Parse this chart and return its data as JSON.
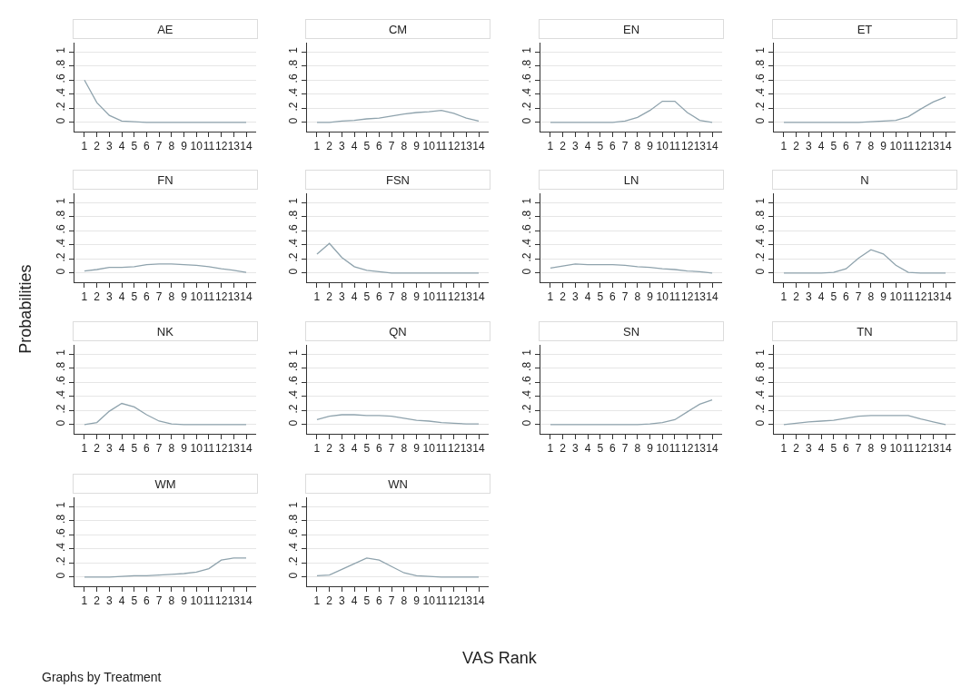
{
  "chart_data": [
    {
      "type": "other",
      "xlabel": "VAS Rank",
      "ylabel": "Probabilities",
      "annotations": [
        "Graphs by Treatment"
      ]
    },
    {
      "type": "line",
      "title": "AE",
      "x": [
        1,
        2,
        3,
        4,
        5,
        6,
        7,
        8,
        9,
        10,
        11,
        12,
        13,
        14
      ],
      "values": [
        0.6,
        0.28,
        0.1,
        0.02,
        0.01,
        0,
        0,
        0,
        0,
        0,
        0,
        0,
        0,
        0
      ],
      "color": "#8fa3ad",
      "xlim": [
        0.2,
        14.8
      ],
      "ylim": [
        -0.13,
        1.13
      ],
      "xticks": [
        1,
        2,
        3,
        4,
        5,
        6,
        7,
        8,
        9,
        10,
        11,
        12,
        13,
        14
      ],
      "yticks": [
        0,
        {
          "value": 0.2,
          "label": ".2"
        },
        {
          "value": 0.4,
          "label": ".4"
        },
        {
          "value": 0.6,
          "label": ".6"
        },
        {
          "value": 0.8,
          "label": ".8"
        },
        1
      ],
      "grid": "y"
    },
    {
      "type": "line",
      "title": "CM",
      "x": [
        1,
        2,
        3,
        4,
        5,
        6,
        7,
        8,
        9,
        10,
        11,
        12,
        13,
        14
      ],
      "values": [
        0,
        0,
        0.02,
        0.03,
        0.05,
        0.06,
        0.09,
        0.12,
        0.14,
        0.15,
        0.17,
        0.13,
        0.06,
        0.02
      ],
      "color": "#8fa3ad",
      "xlim": [
        0.2,
        14.8
      ],
      "ylim": [
        -0.13,
        1.13
      ],
      "xticks": [
        1,
        2,
        3,
        4,
        5,
        6,
        7,
        8,
        9,
        10,
        11,
        12,
        13,
        14
      ],
      "yticks": [
        0,
        {
          "value": 0.2,
          "label": ".2"
        },
        {
          "value": 0.4,
          "label": ".4"
        },
        {
          "value": 0.6,
          "label": ".6"
        },
        {
          "value": 0.8,
          "label": ".8"
        },
        1
      ],
      "grid": "y"
    },
    {
      "type": "line",
      "title": "EN",
      "x": [
        1,
        2,
        3,
        4,
        5,
        6,
        7,
        8,
        9,
        10,
        11,
        12,
        13,
        14
      ],
      "values": [
        0,
        0,
        0,
        0,
        0,
        0,
        0.02,
        0.07,
        0.17,
        0.3,
        0.3,
        0.14,
        0.03,
        0
      ],
      "color": "#8fa3ad",
      "xlim": [
        0.2,
        14.8
      ],
      "ylim": [
        -0.13,
        1.13
      ],
      "xticks": [
        1,
        2,
        3,
        4,
        5,
        6,
        7,
        8,
        9,
        10,
        11,
        12,
        13,
        14
      ],
      "yticks": [
        0,
        {
          "value": 0.2,
          "label": ".2"
        },
        {
          "value": 0.4,
          "label": ".4"
        },
        {
          "value": 0.6,
          "label": ".6"
        },
        {
          "value": 0.8,
          "label": ".8"
        },
        1
      ],
      "grid": "y"
    },
    {
      "type": "line",
      "title": "ET",
      "x": [
        1,
        2,
        3,
        4,
        5,
        6,
        7,
        8,
        9,
        10,
        11,
        12,
        13,
        14
      ],
      "values": [
        0,
        0,
        0,
        0,
        0,
        0,
        0,
        0.01,
        0.02,
        0.03,
        0.08,
        0.19,
        0.29,
        0.36
      ],
      "color": "#8fa3ad",
      "xlim": [
        0.2,
        14.8
      ],
      "ylim": [
        -0.13,
        1.13
      ],
      "xticks": [
        1,
        2,
        3,
        4,
        5,
        6,
        7,
        8,
        9,
        10,
        11,
        12,
        13,
        14
      ],
      "yticks": [
        0,
        {
          "value": 0.2,
          "label": ".2"
        },
        {
          "value": 0.4,
          "label": ".4"
        },
        {
          "value": 0.6,
          "label": ".6"
        },
        {
          "value": 0.8,
          "label": ".8"
        },
        1
      ],
      "grid": "y"
    },
    {
      "type": "line",
      "title": "FN",
      "x": [
        1,
        2,
        3,
        4,
        5,
        6,
        7,
        8,
        9,
        10,
        11,
        12,
        13,
        14
      ],
      "values": [
        0.03,
        0.05,
        0.08,
        0.08,
        0.09,
        0.12,
        0.13,
        0.13,
        0.12,
        0.11,
        0.09,
        0.06,
        0.04,
        0.01
      ],
      "color": "#8fa3ad",
      "xlim": [
        0.2,
        14.8
      ],
      "ylim": [
        -0.13,
        1.13
      ],
      "xticks": [
        1,
        2,
        3,
        4,
        5,
        6,
        7,
        8,
        9,
        10,
        11,
        12,
        13,
        14
      ],
      "yticks": [
        0,
        {
          "value": 0.2,
          "label": ".2"
        },
        {
          "value": 0.4,
          "label": ".4"
        },
        {
          "value": 0.6,
          "label": ".6"
        },
        {
          "value": 0.8,
          "label": ".8"
        },
        1
      ],
      "grid": "y"
    },
    {
      "type": "line",
      "title": "FSN",
      "x": [
        1,
        2,
        3,
        4,
        5,
        6,
        7,
        8,
        9,
        10,
        11,
        12,
        13,
        14
      ],
      "values": [
        0.27,
        0.42,
        0.22,
        0.09,
        0.04,
        0.02,
        0,
        0,
        0,
        0,
        0,
        0,
        0,
        0
      ],
      "color": "#8fa3ad",
      "xlim": [
        0.2,
        14.8
      ],
      "ylim": [
        -0.13,
        1.13
      ],
      "xticks": [
        1,
        2,
        3,
        4,
        5,
        6,
        7,
        8,
        9,
        10,
        11,
        12,
        13,
        14
      ],
      "yticks": [
        0,
        {
          "value": 0.2,
          "label": ".2"
        },
        {
          "value": 0.4,
          "label": ".4"
        },
        {
          "value": 0.6,
          "label": ".6"
        },
        {
          "value": 0.8,
          "label": ".8"
        },
        1
      ],
      "grid": "y"
    },
    {
      "type": "line",
      "title": "LN",
      "x": [
        1,
        2,
        3,
        4,
        5,
        6,
        7,
        8,
        9,
        10,
        11,
        12,
        13,
        14
      ],
      "values": [
        0.07,
        0.1,
        0.13,
        0.12,
        0.12,
        0.12,
        0.11,
        0.09,
        0.08,
        0.06,
        0.05,
        0.03,
        0.02,
        0
      ],
      "color": "#8fa3ad",
      "xlim": [
        0.2,
        14.8
      ],
      "ylim": [
        -0.13,
        1.13
      ],
      "xticks": [
        1,
        2,
        3,
        4,
        5,
        6,
        7,
        8,
        9,
        10,
        11,
        12,
        13,
        14
      ],
      "yticks": [
        0,
        {
          "value": 0.2,
          "label": ".2"
        },
        {
          "value": 0.4,
          "label": ".4"
        },
        {
          "value": 0.6,
          "label": ".6"
        },
        {
          "value": 0.8,
          "label": ".8"
        },
        1
      ],
      "grid": "y"
    },
    {
      "type": "line",
      "title": "N",
      "x": [
        1,
        2,
        3,
        4,
        5,
        6,
        7,
        8,
        9,
        10,
        11,
        12,
        13,
        14
      ],
      "values": [
        0,
        0,
        0,
        0,
        0.01,
        0.06,
        0.21,
        0.33,
        0.27,
        0.11,
        0.01,
        0,
        0,
        0
      ],
      "color": "#8fa3ad",
      "xlim": [
        0.2,
        14.8
      ],
      "ylim": [
        -0.13,
        1.13
      ],
      "xticks": [
        1,
        2,
        3,
        4,
        5,
        6,
        7,
        8,
        9,
        10,
        11,
        12,
        13,
        14
      ],
      "yticks": [
        0,
        {
          "value": 0.2,
          "label": ".2"
        },
        {
          "value": 0.4,
          "label": ".4"
        },
        {
          "value": 0.6,
          "label": ".6"
        },
        {
          "value": 0.8,
          "label": ".8"
        },
        1
      ],
      "grid": "y"
    },
    {
      "type": "line",
      "title": "NK",
      "x": [
        1,
        2,
        3,
        4,
        5,
        6,
        7,
        8,
        9,
        10,
        11,
        12,
        13,
        14
      ],
      "values": [
        0,
        0.03,
        0.19,
        0.3,
        0.25,
        0.14,
        0.05,
        0.01,
        0,
        0,
        0,
        0,
        0,
        0
      ],
      "color": "#8fa3ad",
      "xlim": [
        0.2,
        14.8
      ],
      "ylim": [
        -0.13,
        1.13
      ],
      "xticks": [
        1,
        2,
        3,
        4,
        5,
        6,
        7,
        8,
        9,
        10,
        11,
        12,
        13,
        14
      ],
      "yticks": [
        0,
        {
          "value": 0.2,
          "label": ".2"
        },
        {
          "value": 0.4,
          "label": ".4"
        },
        {
          "value": 0.6,
          "label": ".6"
        },
        {
          "value": 0.8,
          "label": ".8"
        },
        1
      ],
      "grid": "y"
    },
    {
      "type": "line",
      "title": "QN",
      "x": [
        1,
        2,
        3,
        4,
        5,
        6,
        7,
        8,
        9,
        10,
        11,
        12,
        13,
        14
      ],
      "values": [
        0.07,
        0.12,
        0.14,
        0.14,
        0.13,
        0.13,
        0.12,
        0.09,
        0.06,
        0.05,
        0.03,
        0.02,
        0.01,
        0.01
      ],
      "color": "#8fa3ad",
      "xlim": [
        0.2,
        14.8
      ],
      "ylim": [
        -0.13,
        1.13
      ],
      "xticks": [
        1,
        2,
        3,
        4,
        5,
        6,
        7,
        8,
        9,
        10,
        11,
        12,
        13,
        14
      ],
      "yticks": [
        0,
        {
          "value": 0.2,
          "label": ".2"
        },
        {
          "value": 0.4,
          "label": ".4"
        },
        {
          "value": 0.6,
          "label": ".6"
        },
        {
          "value": 0.8,
          "label": ".8"
        },
        1
      ],
      "grid": "y"
    },
    {
      "type": "line",
      "title": "SN",
      "x": [
        1,
        2,
        3,
        4,
        5,
        6,
        7,
        8,
        9,
        10,
        11,
        12,
        13,
        14
      ],
      "values": [
        0,
        0,
        0,
        0,
        0,
        0,
        0,
        0,
        0.01,
        0.03,
        0.07,
        0.18,
        0.29,
        0.35
      ],
      "color": "#8fa3ad",
      "xlim": [
        0.2,
        14.8
      ],
      "ylim": [
        -0.13,
        1.13
      ],
      "xticks": [
        1,
        2,
        3,
        4,
        5,
        6,
        7,
        8,
        9,
        10,
        11,
        12,
        13,
        14
      ],
      "yticks": [
        0,
        {
          "value": 0.2,
          "label": ".2"
        },
        {
          "value": 0.4,
          "label": ".4"
        },
        {
          "value": 0.6,
          "label": ".6"
        },
        {
          "value": 0.8,
          "label": ".8"
        },
        1
      ],
      "grid": "y"
    },
    {
      "type": "line",
      "title": "TN",
      "x": [
        1,
        2,
        3,
        4,
        5,
        6,
        7,
        8,
        9,
        10,
        11,
        12,
        13,
        14
      ],
      "values": [
        0,
        0.02,
        0.04,
        0.05,
        0.06,
        0.09,
        0.12,
        0.13,
        0.13,
        0.13,
        0.13,
        0.08,
        0.04,
        0
      ],
      "color": "#8fa3ad",
      "xlim": [
        0.2,
        14.8
      ],
      "ylim": [
        -0.13,
        1.13
      ],
      "xticks": [
        1,
        2,
        3,
        4,
        5,
        6,
        7,
        8,
        9,
        10,
        11,
        12,
        13,
        14
      ],
      "yticks": [
        0,
        {
          "value": 0.2,
          "label": ".2"
        },
        {
          "value": 0.4,
          "label": ".4"
        },
        {
          "value": 0.6,
          "label": ".6"
        },
        {
          "value": 0.8,
          "label": ".8"
        },
        1
      ],
      "grid": "y"
    },
    {
      "type": "line",
      "title": "WM",
      "x": [
        1,
        2,
        3,
        4,
        5,
        6,
        7,
        8,
        9,
        10,
        11,
        12,
        13,
        14
      ],
      "values": [
        0,
        0,
        0,
        0.01,
        0.02,
        0.02,
        0.03,
        0.04,
        0.05,
        0.07,
        0.12,
        0.24,
        0.27,
        0.27
      ],
      "color": "#8fa3ad",
      "xlim": [
        0.2,
        14.8
      ],
      "ylim": [
        -0.13,
        1.13
      ],
      "xticks": [
        1,
        2,
        3,
        4,
        5,
        6,
        7,
        8,
        9,
        10,
        11,
        12,
        13,
        14
      ],
      "yticks": [
        0,
        {
          "value": 0.2,
          "label": ".2"
        },
        {
          "value": 0.4,
          "label": ".4"
        },
        {
          "value": 0.6,
          "label": ".6"
        },
        {
          "value": 0.8,
          "label": ".8"
        },
        1
      ],
      "grid": "y"
    },
    {
      "type": "line",
      "title": "WN",
      "x": [
        1,
        2,
        3,
        4,
        5,
        6,
        7,
        8,
        9,
        10,
        11,
        12,
        13,
        14
      ],
      "values": [
        0.02,
        0.03,
        0.11,
        0.19,
        0.27,
        0.24,
        0.15,
        0.06,
        0.02,
        0.01,
        0,
        0,
        0,
        0
      ],
      "color": "#8fa3ad",
      "xlim": [
        0.2,
        14.8
      ],
      "ylim": [
        -0.13,
        1.13
      ],
      "xticks": [
        1,
        2,
        3,
        4,
        5,
        6,
        7,
        8,
        9,
        10,
        11,
        12,
        13,
        14
      ],
      "yticks": [
        0,
        {
          "value": 0.2,
          "label": ".2"
        },
        {
          "value": 0.4,
          "label": ".4"
        },
        {
          "value": 0.6,
          "label": ".6"
        },
        {
          "value": 0.8,
          "label": ".8"
        },
        1
      ],
      "grid": "y"
    }
  ]
}
